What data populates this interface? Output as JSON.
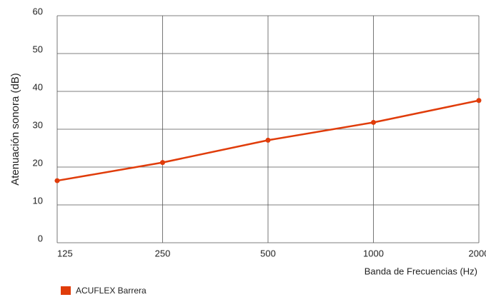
{
  "chart_data": {
    "type": "line",
    "categories": [
      "125",
      "250",
      "500",
      "1000",
      "2000"
    ],
    "series": [
      {
        "name": "ACUFLEX Barrera",
        "color": "#e03c0a",
        "values": [
          16.4,
          21.2,
          27.1,
          31.8,
          37.6
        ]
      }
    ],
    "ylabel": "Atenuación sonora (dB)",
    "xlabel": "Banda de Frecuencias (Hz)",
    "ylim": [
      0,
      60
    ],
    "yticks": [
      0,
      10,
      20,
      30,
      40,
      50,
      60
    ],
    "grid": true
  }
}
